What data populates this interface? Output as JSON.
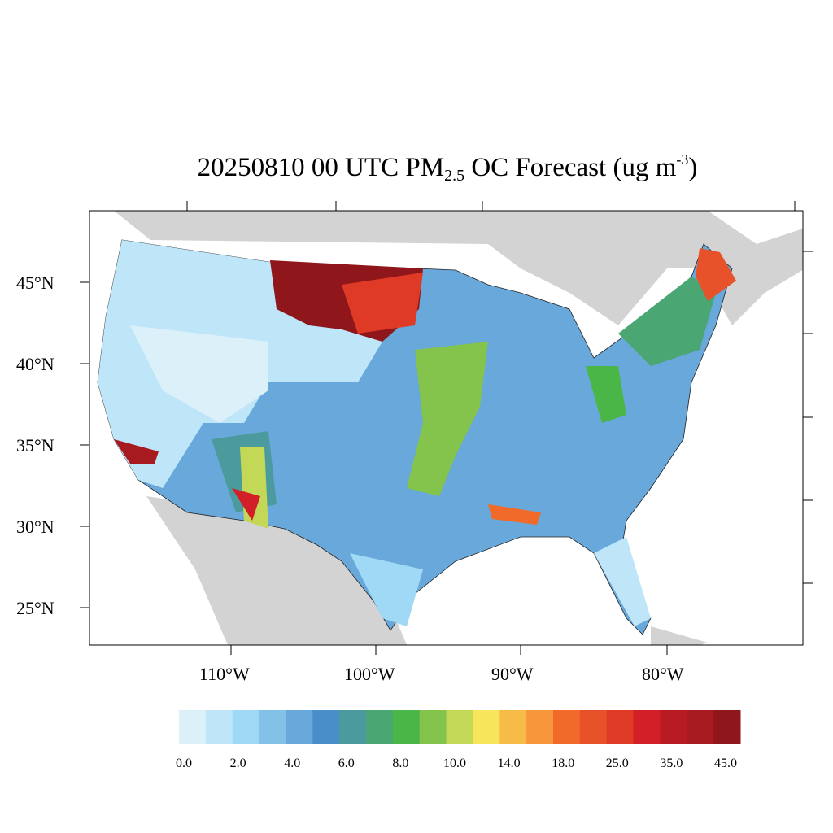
{
  "title": {
    "date_time": "20250810 00 UTC",
    "pm": "PM",
    "pm_sub": "2.5",
    "species": "OC Forecast (ug m",
    "unit_sup": "-3",
    "close": ")"
  },
  "map": {
    "lat_labels": [
      "45°N",
      "40°N",
      "35°N",
      "30°N",
      "25°N"
    ],
    "lon_labels": [
      "110°W",
      "100°W",
      "90°W",
      "80°W"
    ],
    "land_color": "#d3d3d3",
    "ocean_color": "#ffffff"
  },
  "colorbar": {
    "colors": [
      "#dcf0fa",
      "#bee6f8",
      "#9fd9f6",
      "#84c1e6",
      "#69a8da",
      "#4a8ec9",
      "#4a9a9e",
      "#4aa672",
      "#4bb648",
      "#84c44c",
      "#c3d856",
      "#f7e65c",
      "#f7bc48",
      "#f7963a",
      "#f26a2a",
      "#e8522a",
      "#de3a26",
      "#d21f28",
      "#b81c22",
      "#a61a20",
      "#8f161a"
    ],
    "labels": [
      "0.0",
      "2.0",
      "4.0",
      "6.0",
      "8.0",
      "10.0",
      "14.0",
      "18.0",
      "25.0",
      "35.0",
      "45.0"
    ]
  }
}
